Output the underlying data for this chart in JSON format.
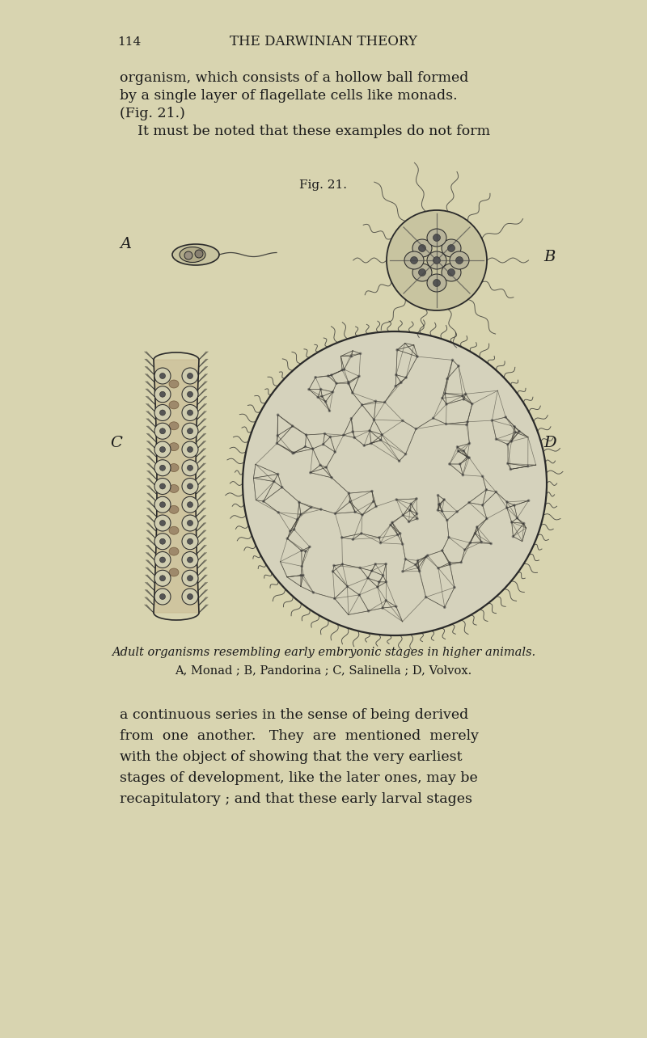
{
  "background_color": "#d8d4b0",
  "page_number": "114",
  "header_title": "THE DARWINIAN THEORY",
  "top_text_lines": [
    "organism, which consists of a hollow ball formed",
    "by a single layer of flagellate cells like monads.",
    "(Fig. 21.)",
    "    It must be noted that these examples do not form"
  ],
  "fig_label": "Fig. 21.",
  "caption_line1": "Adult organisms resembling early embryonic stages in higher animals.",
  "caption_line2": "A, Monad ; B, Pandorina ; C, Salinella ; D, Volvox.",
  "bottom_text_lines": [
    "a continuous series in the sense of being derived",
    "from  one  another.   They  are  mentioned  merely",
    "with the object of showing that the very earliest",
    "stages of development, like the later ones, may be",
    "recapitulatory ; and that these early larval stages"
  ],
  "label_A": "A",
  "label_B": "B",
  "label_C": "C",
  "label_D": "D",
  "text_color": "#1a1a1a",
  "ink_color": "#2a2a2a"
}
